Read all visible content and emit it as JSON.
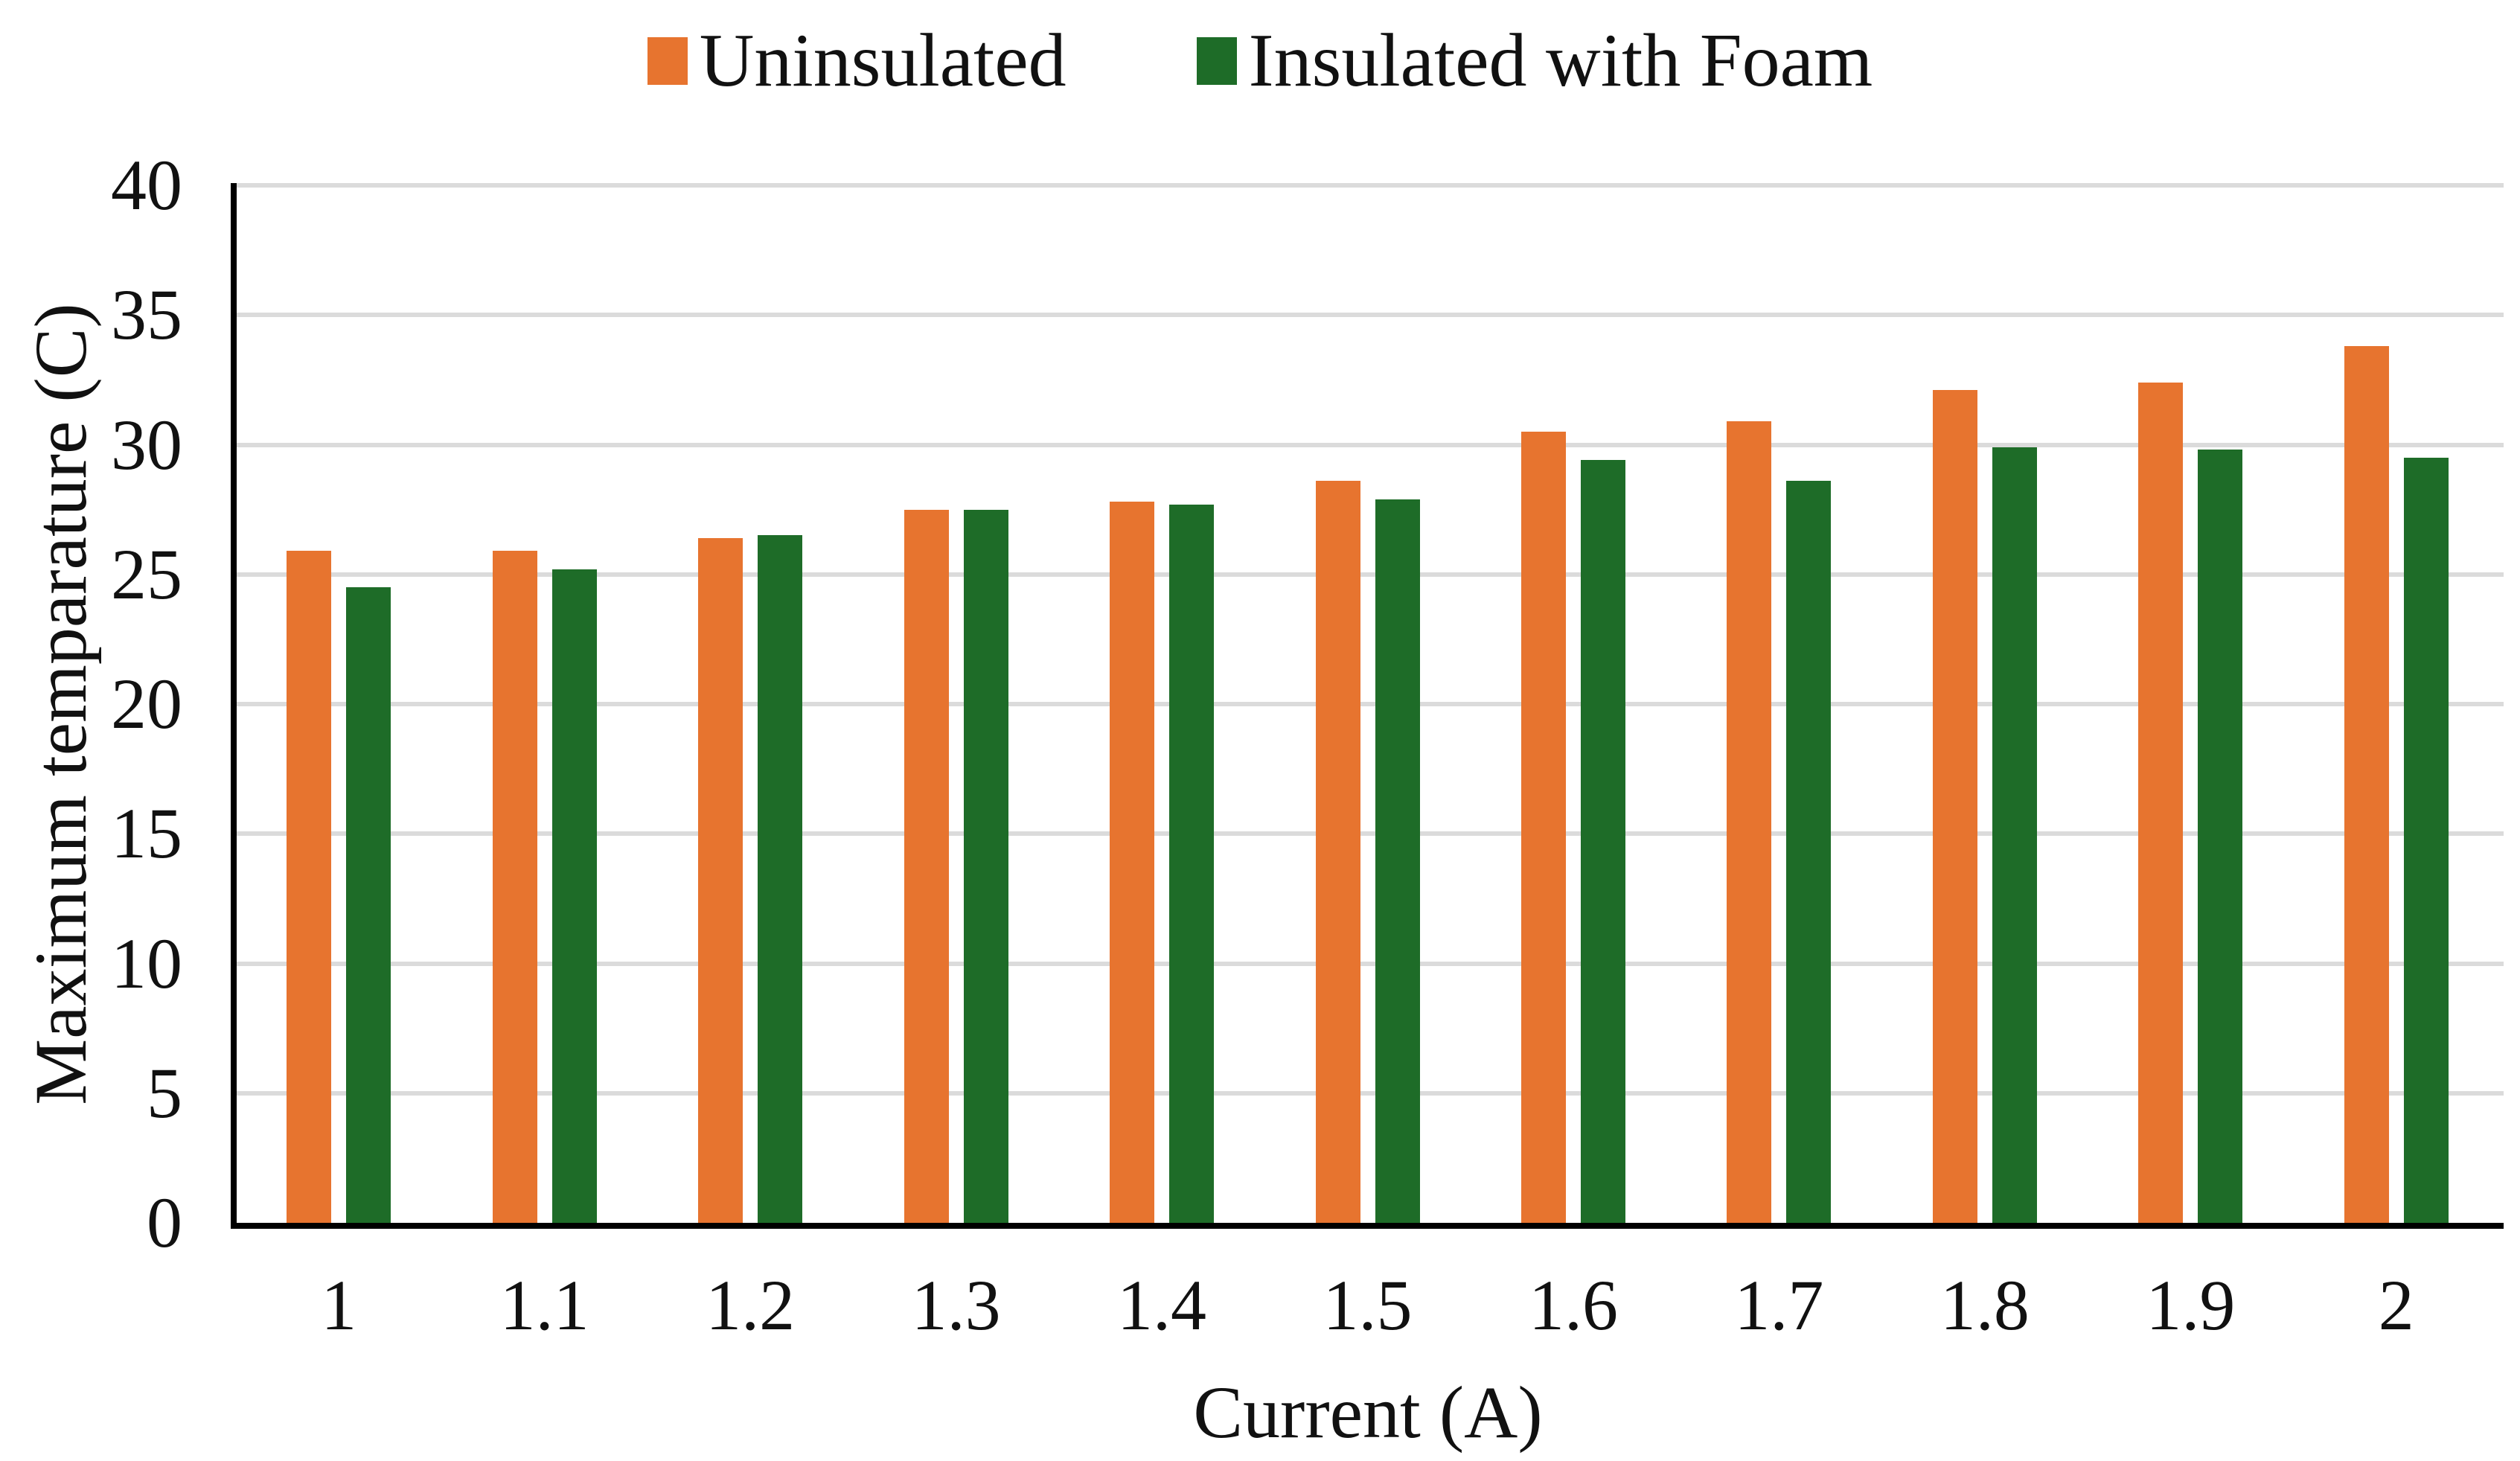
{
  "chart_data": {
    "type": "bar",
    "title": "",
    "categories": [
      "1",
      "1.1",
      "1.2",
      "1.3",
      "1.4",
      "1.5",
      "1.6",
      "1.7",
      "1.8",
      "1.9",
      "2"
    ],
    "series": [
      {
        "name": "Uninsulated",
        "color": "#e7742f",
        "values": [
          25.9,
          25.9,
          26.4,
          27.5,
          27.8,
          28.6,
          30.5,
          30.9,
          32.1,
          32.4,
          33.8
        ]
      },
      {
        "name": "Insulated with Foam",
        "color": "#1e6c28",
        "values": [
          24.5,
          25.2,
          26.5,
          27.5,
          27.7,
          27.9,
          29.4,
          28.6,
          29.9,
          29.8,
          29.5
        ]
      }
    ],
    "xlabel": "Current (A)",
    "ylabel": "Maximum temparature (C)",
    "ylim": [
      0,
      40
    ],
    "yticks": [
      0,
      5,
      10,
      15,
      20,
      25,
      30,
      35,
      40
    ],
    "grid": true,
    "legend_position": "top",
    "gridline_color": "#dbdbdb",
    "axis_line_color": "#000000",
    "text_color": "#111111"
  }
}
